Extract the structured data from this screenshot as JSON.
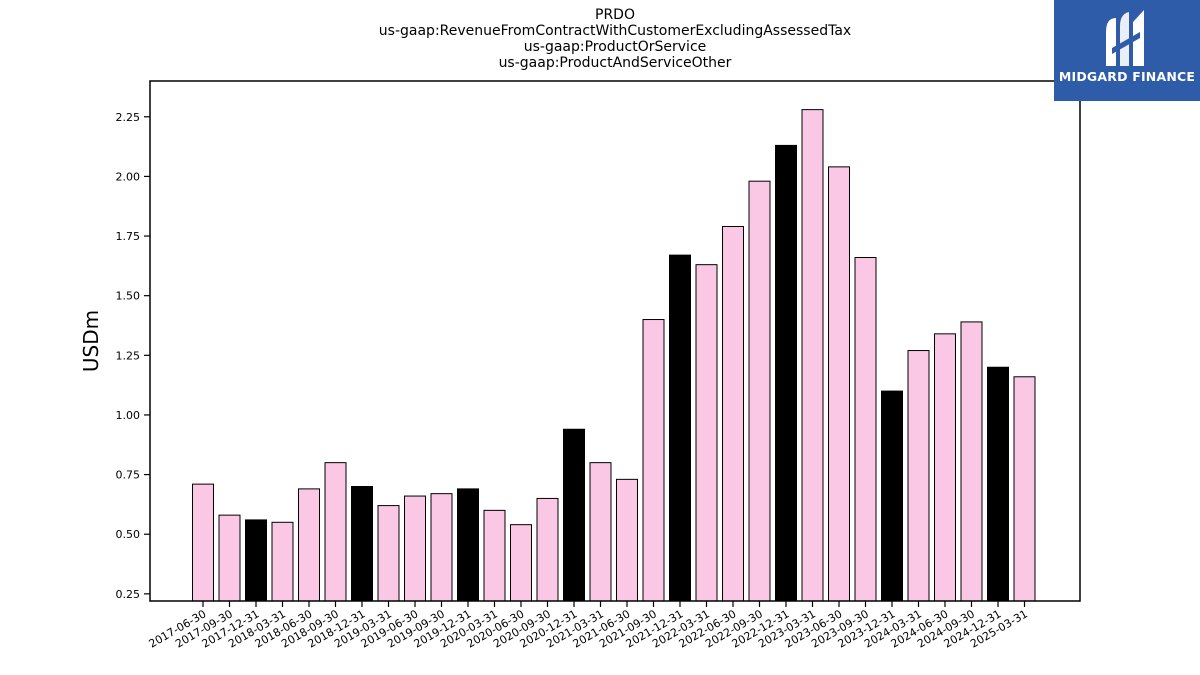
{
  "chart_data": {
    "type": "bar",
    "title_lines": [
      "PRDO",
      "us-gaap:RevenueFromContractWithCustomerExcludingAssessedTax",
      "us-gaap:ProductOrService",
      "us-gaap:ProductAndServiceOther"
    ],
    "xlabel": "",
    "ylabel": "USDm",
    "ylim": [
      0.22,
      2.4
    ],
    "yticks": [
      "0.25",
      "0.50",
      "0.75",
      "1.00",
      "1.25",
      "1.50",
      "1.75",
      "2.00",
      "2.25"
    ],
    "grid": false,
    "categories": [
      "2017-06-30",
      "2017-09-30",
      "2017-12-31",
      "2018-03-31",
      "2018-06-30",
      "2018-09-30",
      "2018-12-31",
      "2019-03-31",
      "2019-06-30",
      "2019-09-30",
      "2019-12-31",
      "2020-03-31",
      "2020-06-30",
      "2020-09-30",
      "2020-12-31",
      "2021-03-31",
      "2021-06-30",
      "2021-09-30",
      "2021-12-31",
      "2022-03-31",
      "2022-06-30",
      "2022-09-30",
      "2022-12-31",
      "2023-03-31",
      "2023-06-30",
      "2023-09-30",
      "2023-12-31",
      "2024-03-31",
      "2024-06-30",
      "2024-09-30",
      "2024-12-31",
      "2025-03-31"
    ],
    "values": [
      0.71,
      0.58,
      0.56,
      0.55,
      0.69,
      0.8,
      0.7,
      0.62,
      0.66,
      0.67,
      0.69,
      0.6,
      0.54,
      0.65,
      0.94,
      0.8,
      0.73,
      1.4,
      1.67,
      1.63,
      1.79,
      1.98,
      2.13,
      2.28,
      2.04,
      1.66,
      1.1,
      1.27,
      1.34,
      1.39,
      1.2,
      1.16
    ],
    "highlight_categories": [
      "2017-12-31",
      "2018-12-31",
      "2019-12-31",
      "2020-12-31",
      "2021-12-31",
      "2022-12-31",
      "2023-12-31",
      "2024-12-31"
    ],
    "colors": {
      "bar": "#fac8e4",
      "highlight_bar": "#000000",
      "edge": "#000000",
      "axis": "#000000"
    }
  },
  "logo": {
    "text": "MIDGARD FINANCE",
    "icon": "midgard-logo-icon",
    "background": "#2f5ca8"
  }
}
